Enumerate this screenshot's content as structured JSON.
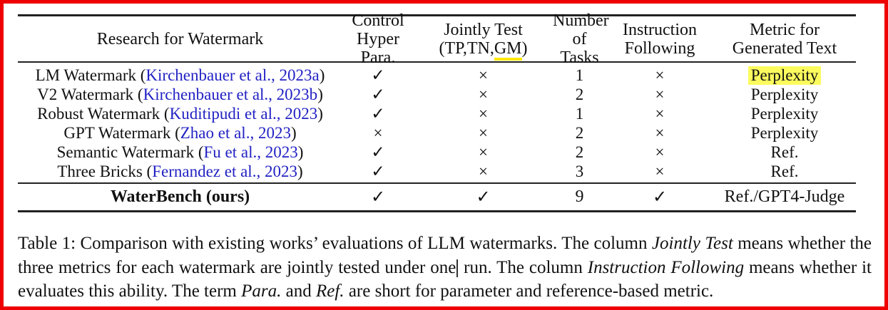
{
  "meta": {
    "border_color": "#ee0000",
    "highlight_yellow": "#fbfb5e",
    "underline_yellow": "#ffe800",
    "citation_blue": "#2222c4"
  },
  "table": {
    "header": {
      "col_research": "Research for Watermark",
      "col_control_l1": "Control",
      "col_control_l2": "Hyper Para.",
      "col_jointly_l1": "Jointly Test",
      "col_jointly_l2_pre": "(TP,TN,",
      "col_jointly_l2_gm": "GM",
      "col_jointly_l2_post": ")",
      "col_tasks_l1": "Number",
      "col_tasks_l2": "of Tasks",
      "col_instruction_l1": "Instruction",
      "col_instruction_l2": "Following",
      "col_metric_l1": "Metric for",
      "col_metric_l2": "Generated Text"
    },
    "rows": [
      {
        "name_pre": "LM Watermark (",
        "citation": "Kirchenbauer et al., 2023a",
        "name_post": ")",
        "control": "✓",
        "jointly": "×",
        "tasks": "1",
        "instruction": "×",
        "metric": "Perplexity",
        "metric_highlighted": true
      },
      {
        "name_pre": "V2 Watermark (",
        "citation": "Kirchenbauer et al., 2023b",
        "name_post": ")",
        "control": "✓",
        "jointly": "×",
        "tasks": "2",
        "instruction": "×",
        "metric": "Perplexity",
        "metric_highlighted": false
      },
      {
        "name_pre": "Robust Watermark (",
        "citation": "Kuditipudi et al., 2023",
        "name_post": ")",
        "control": "✓",
        "jointly": "×",
        "tasks": "1",
        "instruction": "×",
        "metric": "Perplexity",
        "metric_highlighted": false
      },
      {
        "name_pre": "GPT Watermark (",
        "citation": "Zhao et al., 2023",
        "name_post": ")",
        "control": "×",
        "jointly": "×",
        "tasks": "2",
        "instruction": "×",
        "metric": "Perplexity",
        "metric_highlighted": false
      },
      {
        "name_pre": "Semantic Watermark (",
        "citation": "Fu et al., 2023",
        "name_post": ")",
        "control": "✓",
        "jointly": "×",
        "tasks": "2",
        "instruction": "×",
        "metric": "Ref.",
        "metric_highlighted": false
      },
      {
        "name_pre": "Three Bricks (",
        "citation": "Fernandez et al., 2023",
        "name_post": ")",
        "control": "✓",
        "jointly": "×",
        "tasks": "3",
        "instruction": "×",
        "metric": "Ref.",
        "metric_highlighted": false
      }
    ],
    "ours": {
      "name": "WaterBench (ours)",
      "control": "✓",
      "jointly": "✓",
      "tasks": "9",
      "instruction": "✓",
      "metric": "Ref./GPT4-Judge"
    }
  },
  "caption": {
    "seg1": "Table 1: Comparison with existing works’ evaluations of LLM watermarks. The column ",
    "seg2_italic": "Jointly Test",
    "seg3": " means whether the three metrics for each watermark are jointly tested under one",
    "seg4": " run. The column ",
    "seg5_italic": "Instruction Following",
    "seg6": " means whether it evaluates this ability. The term ",
    "seg7_italic": "Para.",
    "seg8": " and ",
    "seg9_italic": "Ref.",
    "seg10": " are short for parameter and reference-based metric."
  }
}
